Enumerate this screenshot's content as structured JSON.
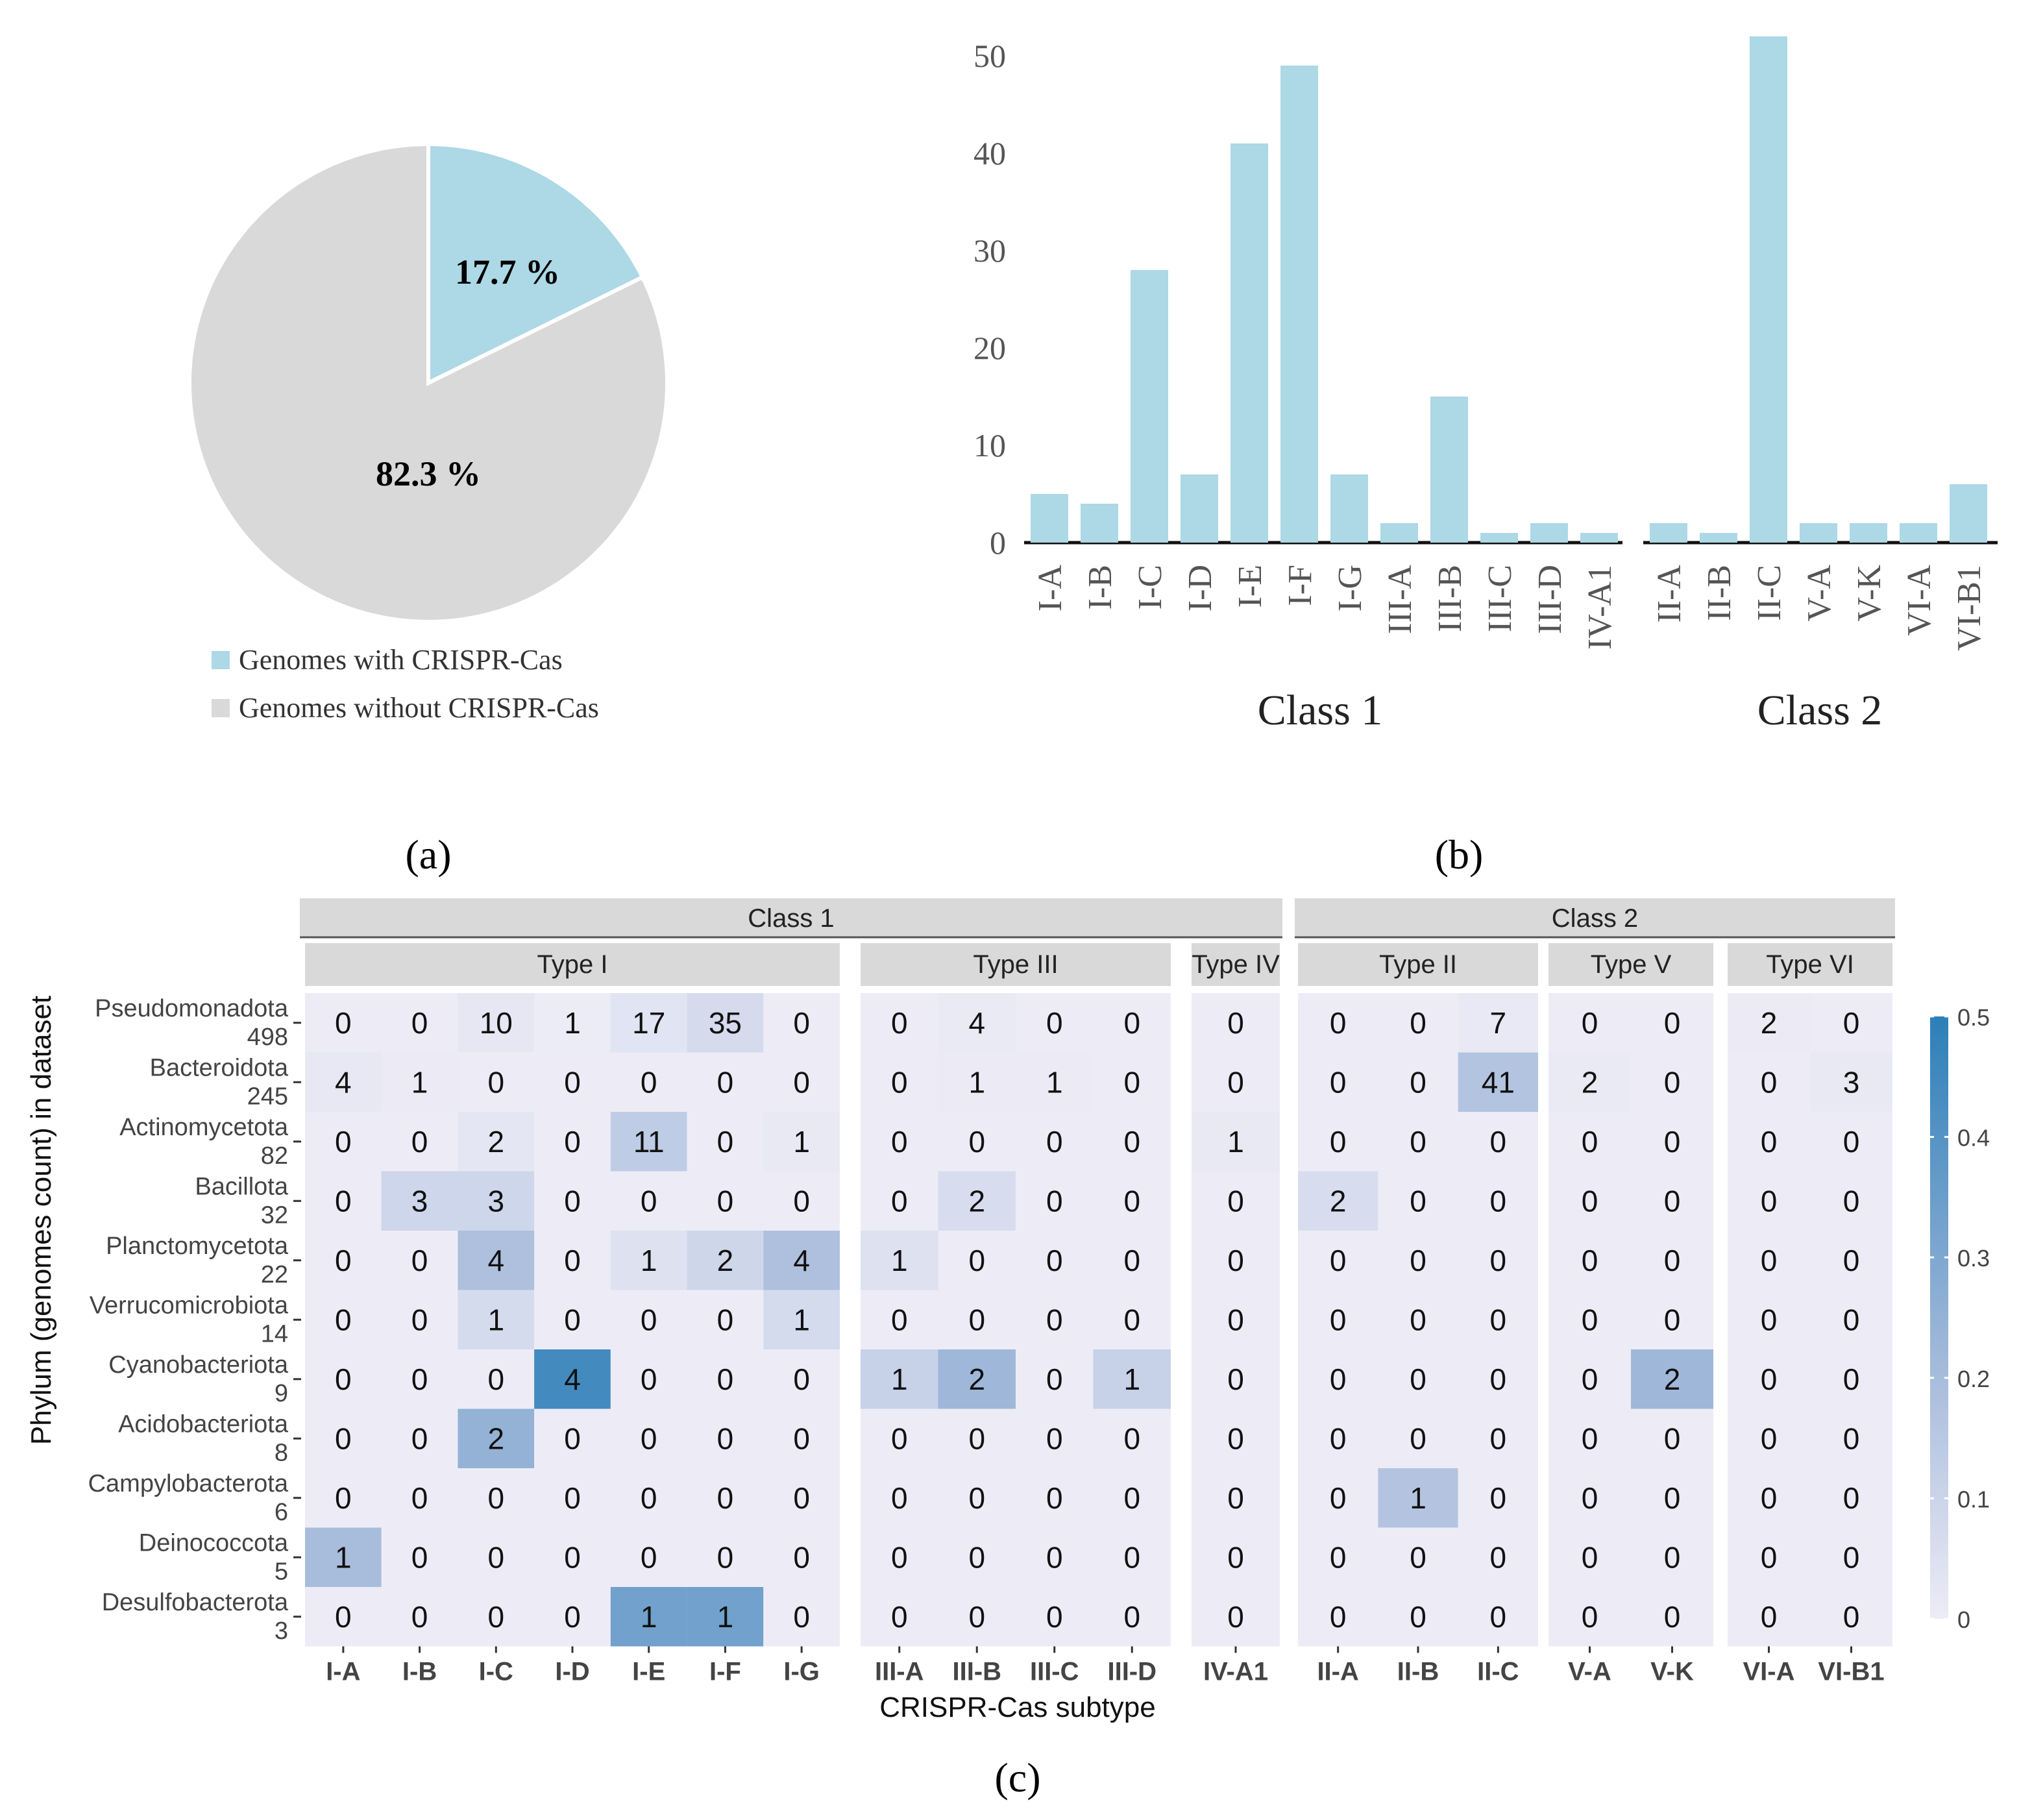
{
  "chart_data": [
    {
      "type": "pie",
      "panel_label": "(a)",
      "slices": [
        {
          "label": "Genomes with CRISPR-Cas",
          "value": 17.7,
          "text": "17.7 %",
          "color": "#add8e6"
        },
        {
          "label": "Genomes without CRISPR-Cas",
          "value": 82.3,
          "text": "82.3 %",
          "color": "#d9d9d9"
        }
      ]
    },
    {
      "type": "bar",
      "panel_label": "(b)",
      "ylim": [
        0,
        52
      ],
      "yticks": [
        "0",
        "10",
        "20",
        "30",
        "40",
        "50"
      ],
      "ytick_values": [
        0,
        10,
        20,
        30,
        40,
        50
      ],
      "bar_color": "#add8e6",
      "groups": [
        {
          "name": "Class 1",
          "categories": [
            "I-A",
            "I-B",
            "I-C",
            "I-D",
            "I-E",
            "I-F",
            "I-G",
            "III-A",
            "III-B",
            "III-C",
            "III-D",
            "IV-A1"
          ],
          "values": [
            5,
            4,
            28,
            7,
            41,
            49,
            7,
            2,
            15,
            1,
            2,
            1
          ]
        },
        {
          "name": "Class 2",
          "categories": [
            "II-A",
            "II-B",
            "II-C",
            "V-A",
            "V-K",
            "VI-A",
            "VI-B1"
          ],
          "values": [
            2,
            1,
            52,
            2,
            2,
            2,
            6
          ]
        }
      ]
    },
    {
      "type": "heatmap",
      "panel_label": "(c)",
      "xlabel": "CRISPR-Cas subtype",
      "ylabel": "Phylum (genomes count) in dataset",
      "classes": [
        {
          "name": "Class 1",
          "types": [
            0,
            1,
            2
          ]
        },
        {
          "name": "Class 2",
          "types": [
            3,
            4,
            5
          ]
        }
      ],
      "types": [
        {
          "name": "Type I",
          "subtypes": [
            "I-A",
            "I-B",
            "I-C",
            "I-D",
            "I-E",
            "I-F",
            "I-G"
          ]
        },
        {
          "name": "Type III",
          "subtypes": [
            "III-A",
            "III-B",
            "III-C",
            "III-D"
          ]
        },
        {
          "name": "Type IV",
          "subtypes": [
            "IV-A1"
          ]
        },
        {
          "name": "Type II",
          "subtypes": [
            "II-A",
            "II-B",
            "II-C"
          ]
        },
        {
          "name": "Type V",
          "subtypes": [
            "V-A",
            "V-K"
          ]
        },
        {
          "name": "Type VI",
          "subtypes": [
            "VI-A",
            "VI-B1"
          ]
        }
      ],
      "rows": [
        {
          "phylum": "Pseudomonadota",
          "count": "498",
          "n": 498,
          "values": [
            0,
            0,
            10,
            1,
            17,
            35,
            0,
            0,
            4,
            0,
            0,
            0,
            0,
            0,
            7,
            0,
            0,
            2,
            0
          ]
        },
        {
          "phylum": "Bacteroidota",
          "count": "245",
          "n": 245,
          "values": [
            4,
            1,
            0,
            0,
            0,
            0,
            0,
            0,
            1,
            1,
            0,
            0,
            0,
            0,
            41,
            2,
            0,
            0,
            3
          ]
        },
        {
          "phylum": "Actinomycetota",
          "count": "82",
          "n": 82,
          "values": [
            0,
            0,
            2,
            0,
            11,
            0,
            1,
            0,
            0,
            0,
            0,
            1,
            0,
            0,
            0,
            0,
            0,
            0,
            0
          ]
        },
        {
          "phylum": "Bacillota",
          "count": "32",
          "n": 32,
          "values": [
            0,
            3,
            3,
            0,
            0,
            0,
            0,
            0,
            2,
            0,
            0,
            0,
            2,
            0,
            0,
            0,
            0,
            0,
            0
          ]
        },
        {
          "phylum": "Planctomycetota",
          "count": "22",
          "n": 22,
          "values": [
            0,
            0,
            4,
            0,
            1,
            2,
            4,
            1,
            0,
            0,
            0,
            0,
            0,
            0,
            0,
            0,
            0,
            0,
            0
          ]
        },
        {
          "phylum": "Verrucomicrobiota",
          "count": "14",
          "n": 14,
          "values": [
            0,
            0,
            1,
            0,
            0,
            0,
            1,
            0,
            0,
            0,
            0,
            0,
            0,
            0,
            0,
            0,
            0,
            0,
            0
          ]
        },
        {
          "phylum": "Cyanobacteriota",
          "count": "9",
          "n": 9,
          "values": [
            0,
            0,
            0,
            4,
            0,
            0,
            0,
            1,
            2,
            0,
            1,
            0,
            0,
            0,
            0,
            0,
            2,
            0,
            0
          ]
        },
        {
          "phylum": "Acidobacteriota",
          "count": "8",
          "n": 8,
          "values": [
            0,
            0,
            2,
            0,
            0,
            0,
            0,
            0,
            0,
            0,
            0,
            0,
            0,
            0,
            0,
            0,
            0,
            0,
            0
          ]
        },
        {
          "phylum": "Campylobacterota",
          "count": "6",
          "n": 6,
          "values": [
            0,
            0,
            0,
            0,
            0,
            0,
            0,
            0,
            0,
            0,
            0,
            0,
            0,
            1,
            0,
            0,
            0,
            0,
            0
          ]
        },
        {
          "phylum": "Deinococcota",
          "count": "5",
          "n": 5,
          "values": [
            1,
            0,
            0,
            0,
            0,
            0,
            0,
            0,
            0,
            0,
            0,
            0,
            0,
            0,
            0,
            0,
            0,
            0,
            0
          ]
        },
        {
          "phylum": "Desulfobacterota",
          "count": "3",
          "n": 3,
          "values": [
            0,
            0,
            0,
            0,
            1,
            1,
            0,
            0,
            0,
            0,
            0,
            0,
            0,
            0,
            0,
            0,
            0,
            0,
            0
          ]
        }
      ],
      "colorbar": {
        "min": 0,
        "max": 0.5,
        "ticks": [
          "0",
          "0.1",
          "0.2",
          "0.3",
          "0.4",
          "0.5"
        ],
        "tick_values": [
          0,
          0.1,
          0.2,
          0.3,
          0.4,
          0.5
        ],
        "low_color": "#edecf6",
        "high_color": "#2c7fb8"
      }
    }
  ]
}
